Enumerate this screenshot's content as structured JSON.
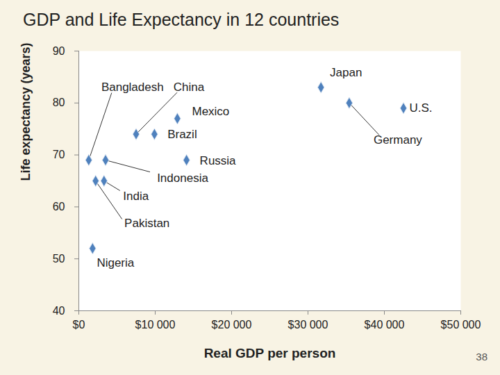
{
  "chart_data": {
    "type": "scatter",
    "title": "GDP and Life Expectancy in 12 countries",
    "x_label": "Real GDP per person",
    "y_label": "Life expectancy (years)",
    "page_number": "38",
    "point_labels": [
      "Bangladesh",
      "China",
      "Mexico",
      "Brazil",
      "Russia",
      "Indonesia",
      "India",
      "Pakistan",
      "Nigeria",
      "Japan",
      "Germany",
      "U.S."
    ],
    "x": [
      1300,
      7500,
      12900,
      9900,
      14100,
      3500,
      3300,
      2200,
      1800,
      31700,
      35400,
      42500
    ],
    "values": [
      69,
      74,
      77,
      74,
      69,
      69,
      65,
      65,
      52,
      83,
      80,
      79
    ],
    "color": "#4f81bd",
    "marker": "diamond",
    "grid": false,
    "xlim": [
      0,
      50000
    ],
    "xticks": [
      {
        "value": 0,
        "label": "$0"
      },
      {
        "value": 10000,
        "label": "$10 000"
      },
      {
        "value": 20000,
        "label": "$20 000"
      },
      {
        "value": 30000,
        "label": "$30 000"
      },
      {
        "value": 40000,
        "label": "$40 000"
      },
      {
        "value": 50000,
        "label": "$50 000"
      }
    ],
    "ylim": [
      40,
      90
    ],
    "yticks": [
      40,
      50,
      60,
      70,
      80,
      90
    ]
  }
}
